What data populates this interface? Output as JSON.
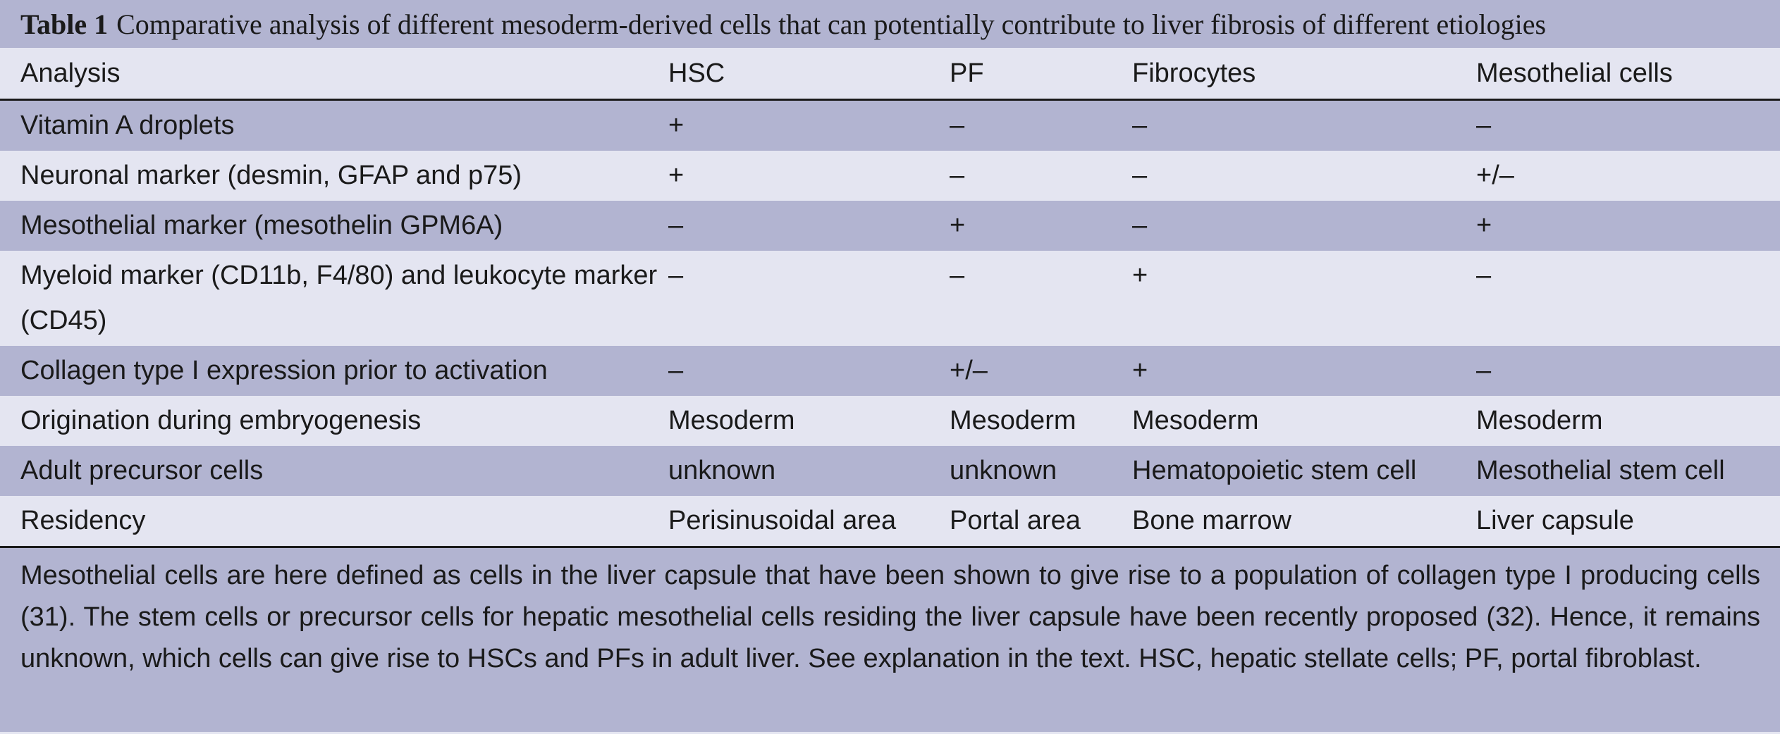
{
  "table": {
    "caption_label": "Table 1",
    "caption_text": "Comparative analysis of different mesoderm-derived cells that can potentially contribute to liver fibrosis of different etiologies",
    "headers": [
      "Analysis",
      "HSC",
      "PF",
      "Fibrocytes",
      "Mesothelial cells"
    ],
    "rows": [
      [
        "Vitamin A droplets",
        "+",
        "–",
        "–",
        "–"
      ],
      [
        "Neuronal marker (desmin, GFAP and p75)",
        "+",
        "–",
        "–",
        "+/–"
      ],
      [
        "Mesothelial marker (mesothelin GPM6A)",
        "–",
        "+",
        "–",
        "+"
      ],
      [
        "Myeloid marker (CD11b, F4/80) and leukocyte marker (CD45)",
        "–",
        "–",
        "+",
        "–"
      ],
      [
        "Collagen type I expression prior to activation",
        "–",
        "+/–",
        "+",
        "–"
      ],
      [
        "Origination during embryogenesis",
        "Mesoderm",
        "Mesoderm",
        "Mesoderm",
        "Mesoderm"
      ],
      [
        "Adult precursor cells",
        "unknown",
        "unknown",
        "Hematopoietic stem cell",
        "Mesothelial stem cell"
      ],
      [
        "Residency",
        "Perisinusoidal area",
        "Portal area",
        "Bone marrow",
        "Liver capsule"
      ]
    ],
    "footnote": "Mesothelial cells are here defined as cells in the liver capsule that have been shown to give rise to a population of collagen type I producing cells (31). The stem cells or precursor cells for hepatic mesothelial cells residing the liver capsule have been recently proposed (32). Hence, it remains unknown, which cells can give rise to HSCs and PFs in adult liver. See explanation in the text. HSC, hepatic stellate cells; PF, portal fibroblast."
  },
  "colors": {
    "band_dark": "#b2b4d1",
    "band_light": "#e4e5f1",
    "text": "#1a1a1a"
  }
}
